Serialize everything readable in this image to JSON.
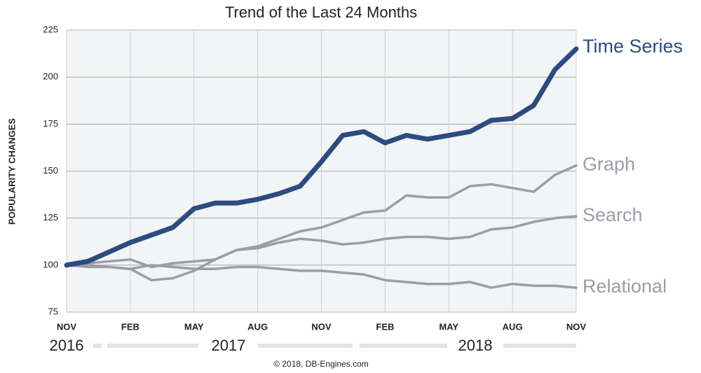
{
  "chart_data": {
    "type": "line",
    "title": "Trend of the Last 24 Months",
    "y_label": "POPULARITY CHANGES",
    "categories": [
      "NOV",
      null,
      null,
      "FEB",
      null,
      null,
      "MAY",
      null,
      null,
      "AUG",
      null,
      null,
      "NOV",
      null,
      null,
      "FEB",
      null,
      null,
      "MAY",
      null,
      null,
      "AUG",
      null,
      null,
      "NOV"
    ],
    "year_labels": [
      "2016",
      "2017",
      "2018"
    ],
    "source": "© 2018, DB-Engines.com",
    "ylim": [
      75,
      225
    ],
    "yticks": [
      75,
      100,
      125,
      150,
      175,
      200,
      225
    ],
    "grid": true,
    "series": [
      {
        "name": "Time Series",
        "color": "#2d4b7e",
        "values": [
          100,
          102,
          107,
          112,
          116,
          120,
          130,
          133,
          133,
          135,
          138,
          142,
          155,
          169,
          171,
          165,
          169,
          167,
          169,
          171,
          177,
          178,
          185,
          204,
          215
        ]
      },
      {
        "name": "Graph",
        "color": "#9c9cab",
        "values": [
          100,
          100,
          99,
          98,
          92,
          93,
          97,
          103,
          108,
          110,
          114,
          118,
          120,
          124,
          128,
          129,
          137,
          136,
          136,
          142,
          143,
          141,
          139,
          148,
          153
        ]
      },
      {
        "name": "Search",
        "color": "#9c9cab",
        "values": [
          100,
          101,
          102,
          103,
          99,
          101,
          102,
          103,
          108,
          109,
          112,
          114,
          113,
          111,
          112,
          114,
          115,
          115,
          114,
          115,
          119,
          120,
          123,
          125,
          126
        ]
      },
      {
        "name": "Relational",
        "color": "#9c9cab",
        "values": [
          100,
          99,
          99,
          98,
          100,
          99,
          98,
          98,
          99,
          99,
          98,
          97,
          97,
          96,
          95,
          92,
          91,
          90,
          90,
          91,
          88,
          90,
          89,
          89,
          88
        ]
      }
    ]
  }
}
